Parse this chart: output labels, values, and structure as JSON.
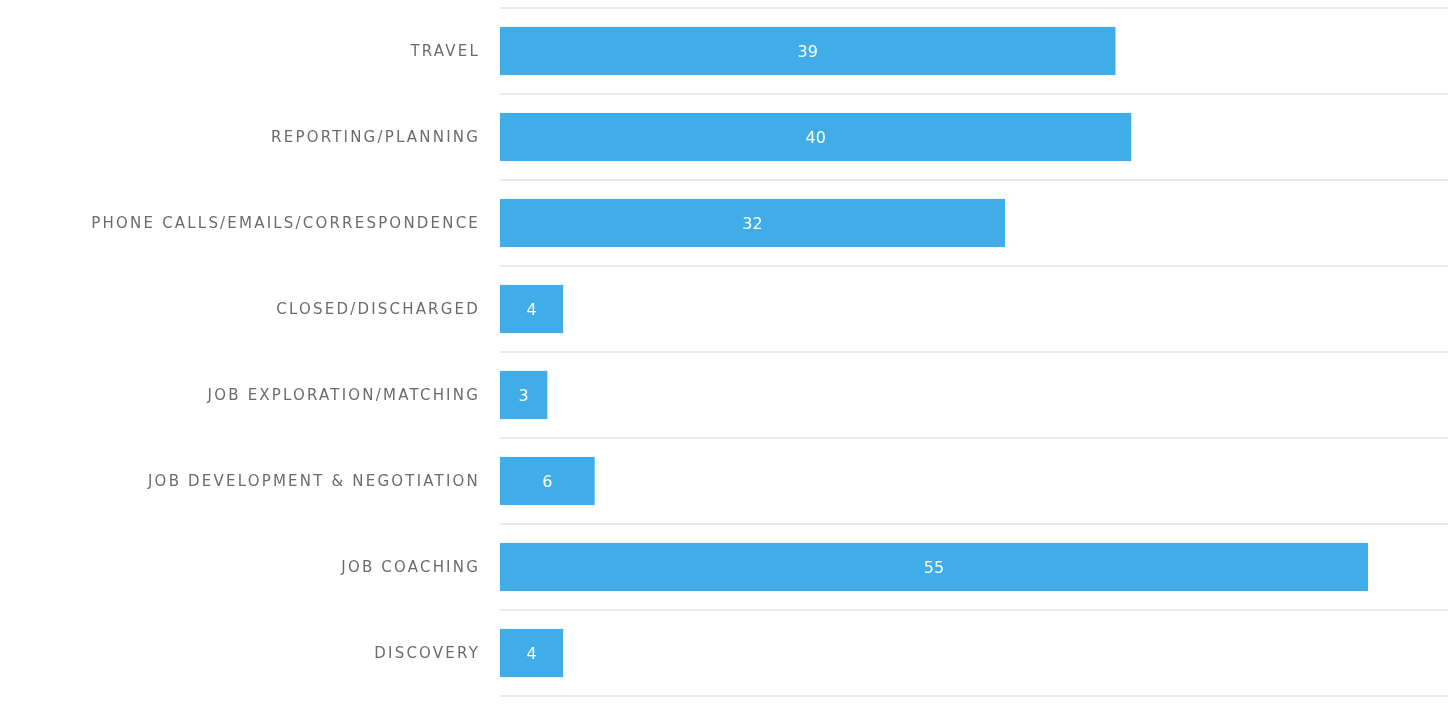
{
  "chart_data": {
    "type": "bar",
    "orientation": "horizontal",
    "categories": [
      "TRAVEL",
      "REPORTING/PLANNING",
      "PHONE CALLS/EMAILS/CORRESPONDENCE",
      "CLOSED/DISCHARGED",
      "JOB EXPLORATION/MATCHING",
      "JOB DEVELOPMENT & NEGOTIATION",
      "JOB COACHING",
      "DISCOVERY"
    ],
    "values": [
      39,
      40,
      32,
      4,
      3,
      6,
      55,
      4
    ],
    "color": "#41ade8",
    "data_labels": true,
    "grid": "y"
  }
}
